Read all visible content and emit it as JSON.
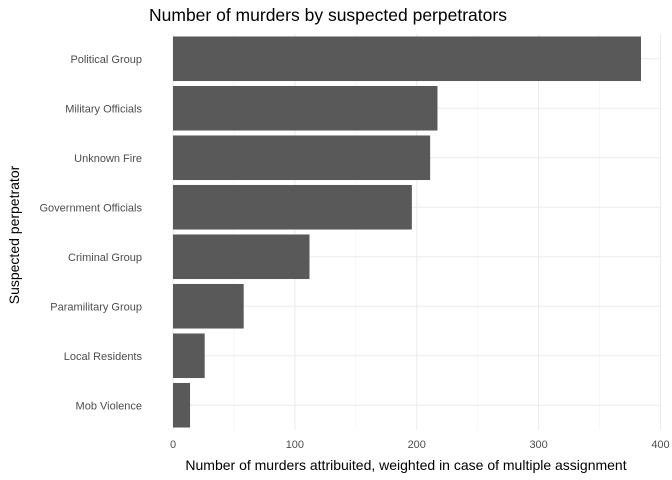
{
  "chart_data": {
    "type": "bar",
    "orientation": "horizontal",
    "title": "Number of murders by suspected perpetrators",
    "xlabel": "Number of murders attribuited, weighted in case of multiple assignment",
    "ylabel": "Suspected perpetrator",
    "categories": [
      "Political Group",
      "Military Officials",
      "Unknown Fire",
      "Government Officials",
      "Criminal Group",
      "Paramilitary Group",
      "Local Residents",
      "Mob Violence"
    ],
    "values": [
      384,
      217,
      211,
      196,
      112,
      58,
      26,
      14
    ],
    "xlim": [
      0,
      405
    ],
    "xticks": [
      0,
      100,
      200,
      300,
      400
    ],
    "xtick_labels": [
      "0",
      "100",
      "200",
      "300",
      "400"
    ],
    "grid": true,
    "bar_color": "#595959"
  }
}
